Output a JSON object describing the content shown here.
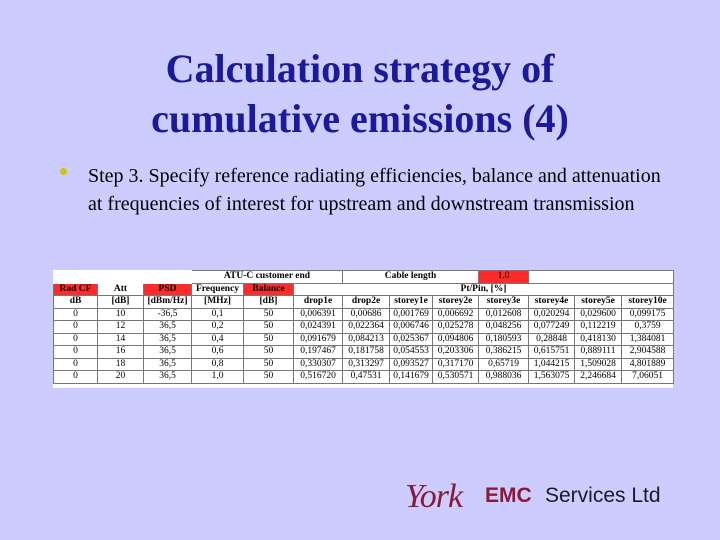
{
  "slide": {
    "title_line1": "Calculation strategy of",
    "title_line2": "cumulative emissions (4)",
    "bullet": "Step 3. Specify reference radiating efficiencies, balance and attenuation at frequencies of interest for upstream and downstream transmission"
  },
  "table": {
    "top_labels": {
      "atu_c_customer_end": "ATU-C customer end",
      "cable_length": "Cable length",
      "cable_length_value": "1.0"
    },
    "pt_pin_label": "Pt/Pin, [%]",
    "headers": [
      "Rad CF",
      "Att",
      "PSD",
      "Frequency",
      "Balance"
    ],
    "units": [
      "dB",
      "[dB]",
      "[dBm/Hz]",
      "[MHz]",
      "[dB]"
    ],
    "pt_columns": [
      "drop1e",
      "drop2e",
      "storey1e",
      "storey2e",
      "storey3e",
      "storey4e",
      "storey5e",
      "storey10e"
    ],
    "rows": [
      [
        "0",
        "10",
        "-36,5",
        "0,1",
        "50",
        "0,006391",
        "0,00686",
        "0,001769",
        "0,006692",
        "0,012608",
        "0,020294",
        "0,029600",
        "0,099175"
      ],
      [
        "0",
        "12",
        "36,5",
        "0,2",
        "50",
        "0,024391",
        "0,022364",
        "0,006746",
        "0,025278",
        "0,048256",
        "0,077249",
        "0,112219",
        "0,3759"
      ],
      [
        "0",
        "14",
        "36,5",
        "0,4",
        "50",
        "0,091679",
        "0,084213",
        "0,025367",
        "0,094806",
        "0,180593",
        "0,28848",
        "0,418130",
        "1,384081"
      ],
      [
        "0",
        "16",
        "36,5",
        "0,6",
        "50",
        "0,197467",
        "0,181758",
        "0,054553",
        "0,203306",
        "0,386215",
        "0,615751",
        "0,889111",
        "2,904588"
      ],
      [
        "0",
        "18",
        "36,5",
        "0,8",
        "50",
        "0,330307",
        "0,313297",
        "0,093527",
        "0,317170",
        "0,65719",
        "1,044215",
        "1,509028",
        "4,801889"
      ],
      [
        "0",
        "20",
        "36,5",
        "1,0",
        "50",
        "0,516720",
        "0,47531",
        "0,141679",
        "0,530571",
        "0,988036",
        "1,563075",
        "2,246684",
        "7,06051"
      ]
    ]
  },
  "logo": {
    "york": "York",
    "emc": "EMC",
    "services": "Services Ltd"
  },
  "colors": {
    "background": "#ccccff",
    "title": "#1a1a9a",
    "bullet": "#d4c400",
    "header_red": "#ff2a2a",
    "logo_accent": "#8a1a3a"
  }
}
